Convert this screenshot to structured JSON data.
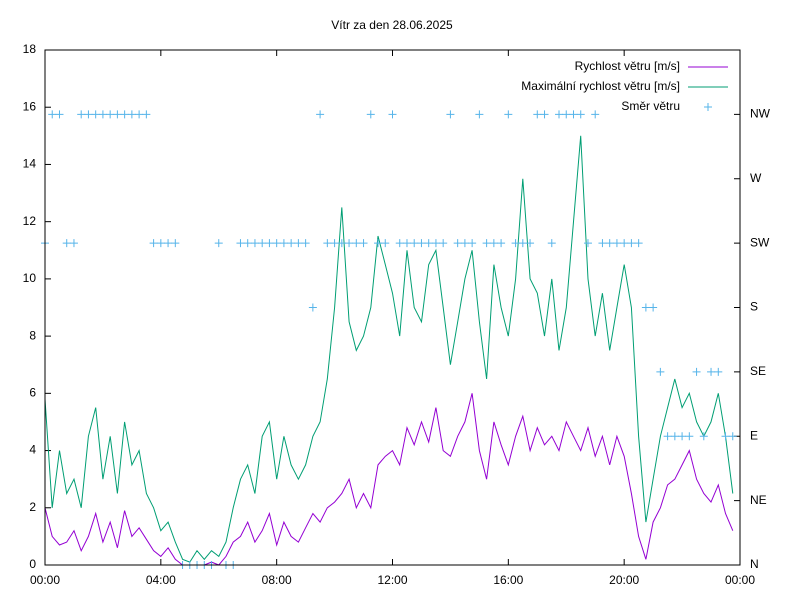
{
  "chart_data": {
    "type": "line",
    "title": "Vítr za den 28.06.2025",
    "x": [
      0,
      0.25,
      0.5,
      0.75,
      1,
      1.25,
      1.5,
      1.75,
      2,
      2.25,
      2.5,
      2.75,
      3,
      3.25,
      3.5,
      3.75,
      4,
      4.25,
      4.5,
      4.75,
      5,
      5.25,
      5.5,
      5.75,
      6,
      6.25,
      6.5,
      6.75,
      7,
      7.25,
      7.5,
      7.75,
      8,
      8.25,
      8.5,
      8.75,
      9,
      9.25,
      9.5,
      9.75,
      10,
      10.25,
      10.5,
      10.75,
      11,
      11.25,
      11.5,
      11.75,
      12,
      12.25,
      12.5,
      12.75,
      13,
      13.25,
      13.5,
      13.75,
      14,
      14.25,
      14.5,
      14.75,
      15,
      15.25,
      15.5,
      15.75,
      16,
      16.25,
      16.5,
      16.75,
      17,
      17.25,
      17.5,
      17.75,
      18,
      18.25,
      18.5,
      18.75,
      19,
      19.25,
      19.5,
      19.75,
      20,
      20.25,
      20.5,
      20.75,
      21,
      21.25,
      21.5,
      21.75,
      22,
      22.25,
      22.5,
      22.75,
      23,
      23.25,
      23.5,
      23.75
    ],
    "xlim": [
      0,
      24
    ],
    "xticks": [
      {
        "value": 0,
        "label": "00:00"
      },
      {
        "value": 4,
        "label": "04:00"
      },
      {
        "value": 8,
        "label": "08:00"
      },
      {
        "value": 12,
        "label": "12:00"
      },
      {
        "value": 16,
        "label": "16:00"
      },
      {
        "value": 20,
        "label": "20:00"
      },
      {
        "value": 24,
        "label": "00:00"
      }
    ],
    "ylim": [
      0,
      18
    ],
    "yticks": [
      0,
      2,
      4,
      6,
      8,
      10,
      12,
      14,
      16,
      18
    ],
    "y2lim": [
      0,
      360
    ],
    "y2ticks": [
      {
        "value": 0,
        "label": "N"
      },
      {
        "value": 45,
        "label": "NE"
      },
      {
        "value": 90,
        "label": "E"
      },
      {
        "value": 135,
        "label": "SE"
      },
      {
        "value": 180,
        "label": "S"
      },
      {
        "value": 225,
        "label": "SW"
      },
      {
        "value": 270,
        "label": "W"
      },
      {
        "value": 315,
        "label": "NW"
      }
    ],
    "legend": "top-right",
    "series": [
      {
        "name": "Rychlost větru [m/s]",
        "color": "#9400d3",
        "style": "line",
        "values": [
          2.0,
          1.0,
          0.7,
          0.8,
          1.2,
          0.5,
          1.0,
          1.8,
          0.8,
          1.5,
          0.6,
          1.9,
          1.0,
          1.3,
          0.9,
          0.5,
          0.3,
          0.6,
          0.2,
          0.0,
          0.0,
          0.0,
          0.0,
          0.1,
          0.0,
          0.3,
          0.8,
          1.0,
          1.5,
          0.8,
          1.2,
          1.8,
          0.7,
          1.5,
          1.0,
          0.8,
          1.3,
          1.8,
          1.5,
          2.0,
          2.2,
          2.5,
          3.0,
          2.0,
          2.5,
          2.0,
          3.5,
          3.8,
          4.0,
          3.5,
          4.8,
          4.2,
          5.0,
          4.3,
          5.5,
          4.0,
          3.8,
          4.5,
          5.0,
          6.0,
          4.0,
          3.0,
          5.0,
          4.2,
          3.5,
          4.5,
          5.2,
          4.0,
          4.8,
          4.2,
          4.5,
          4.0,
          5.0,
          4.5,
          4.0,
          4.8,
          3.8,
          4.5,
          3.5,
          4.5,
          3.8,
          2.5,
          1.0,
          0.2,
          1.5,
          2.0,
          2.8,
          3.0,
          3.5,
          4.0,
          3.0,
          2.5,
          2.2,
          2.8,
          1.8,
          1.2
        ]
      },
      {
        "name": "Maximální rychlost větru [m/s]",
        "color": "#009e73",
        "style": "line",
        "values": [
          5.8,
          2.0,
          4.0,
          2.5,
          3.0,
          2.0,
          4.5,
          5.5,
          3.0,
          4.5,
          2.5,
          5.0,
          3.5,
          4.0,
          2.5,
          2.0,
          1.2,
          1.5,
          0.8,
          0.2,
          0.1,
          0.5,
          0.2,
          0.5,
          0.3,
          0.8,
          2.0,
          3.0,
          3.5,
          2.5,
          4.5,
          5.0,
          3.0,
          4.5,
          3.5,
          3.0,
          3.5,
          4.5,
          5.0,
          6.5,
          9.0,
          12.5,
          8.5,
          7.5,
          8.0,
          9.0,
          11.5,
          10.5,
          9.5,
          8.0,
          11.0,
          9.0,
          8.5,
          10.5,
          11.0,
          9.0,
          7.0,
          8.5,
          10.0,
          11.0,
          8.5,
          6.5,
          10.5,
          9.0,
          8.0,
          10.0,
          13.5,
          10.0,
          9.5,
          8.0,
          10.0,
          7.5,
          9.0,
          12.0,
          15.0,
          10.0,
          8.0,
          9.5,
          7.5,
          9.0,
          10.5,
          9.0,
          4.5,
          1.5,
          3.0,
          4.5,
          5.5,
          6.5,
          5.5,
          6.0,
          5.0,
          4.5,
          5.0,
          6.0,
          4.5,
          2.5
        ]
      },
      {
        "name": "Směr větru",
        "color": "#56b4e9",
        "style": "points",
        "axis": "y2",
        "values": [
          225,
          315,
          315,
          225,
          225,
          315,
          315,
          315,
          315,
          315,
          315,
          315,
          315,
          315,
          315,
          225,
          225,
          225,
          225,
          0,
          0,
          0,
          0,
          0,
          225,
          0,
          0,
          225,
          225,
          225,
          225,
          225,
          225,
          225,
          225,
          225,
          225,
          180,
          315,
          225,
          225,
          225,
          225,
          225,
          225,
          315,
          225,
          225,
          315,
          225,
          225,
          225,
          225,
          225,
          225,
          225,
          315,
          225,
          225,
          225,
          315,
          225,
          225,
          225,
          315,
          225,
          225,
          225,
          315,
          315,
          225,
          315,
          315,
          315,
          315,
          225,
          315,
          225,
          225,
          225,
          225,
          225,
          225,
          180,
          180,
          135,
          90,
          90,
          90,
          90,
          135,
          90,
          135,
          135,
          90,
          90
        ]
      }
    ]
  }
}
